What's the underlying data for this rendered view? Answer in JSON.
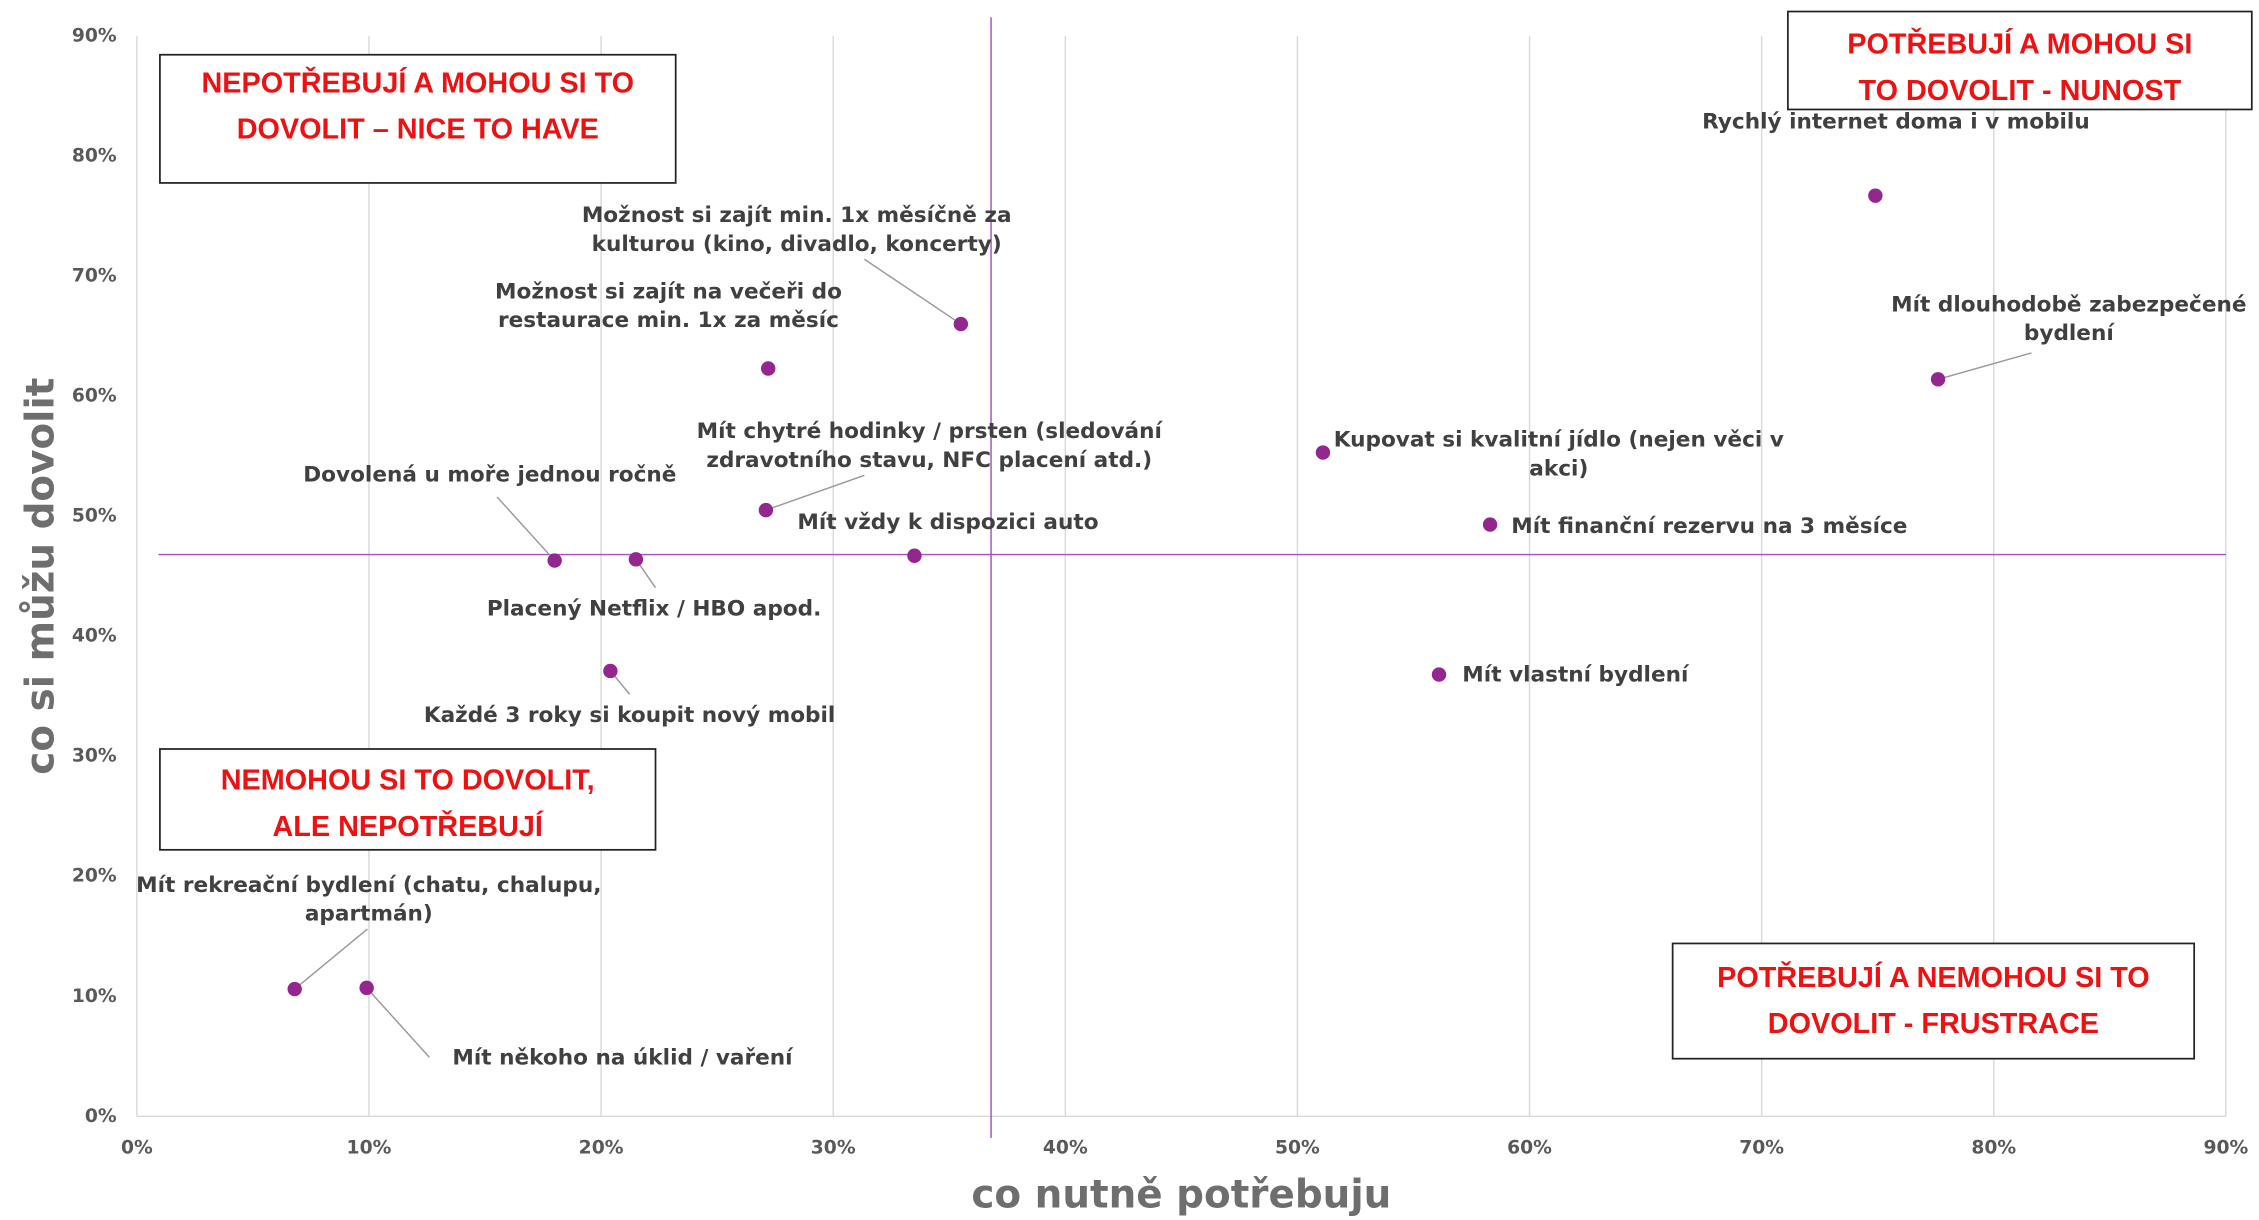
{
  "chart_data": {
    "type": "scatter",
    "x_label": "co nutně potřebuju",
    "y_label": "co si můžu dovolit",
    "xlim": [
      0,
      90
    ],
    "ylim": [
      0,
      90
    ],
    "xticks": [
      {
        "value": 0,
        "label": "0%"
      },
      {
        "value": 10,
        "label": "10%"
      },
      {
        "value": 20,
        "label": "20%"
      },
      {
        "value": 30,
        "label": "30%"
      },
      {
        "value": 40,
        "label": "40%"
      },
      {
        "value": 50,
        "label": "50%"
      },
      {
        "value": 60,
        "label": "60%"
      },
      {
        "value": 70,
        "label": "70%"
      },
      {
        "value": 80,
        "label": "80%"
      },
      {
        "value": 90,
        "label": "90%"
      }
    ],
    "yticks": [
      {
        "value": 0,
        "label": "0%"
      },
      {
        "value": 10,
        "label": "10%"
      },
      {
        "value": 20,
        "label": "20%"
      },
      {
        "value": 30,
        "label": "30%"
      },
      {
        "value": 40,
        "label": "40%"
      },
      {
        "value": 50,
        "label": "50%"
      },
      {
        "value": 60,
        "label": "60%"
      },
      {
        "value": 70,
        "label": "70%"
      },
      {
        "value": 80,
        "label": "80%"
      },
      {
        "value": 90,
        "label": "90%"
      }
    ],
    "grid": "x",
    "color": "#93278f",
    "reference_x": 36.8,
    "reference_y": 46.8,
    "reference_color": "#a64dc4",
    "points": [
      {
        "label": [
          "Rychlý internet doma i v mobilu"
        ],
        "x": 74.9,
        "y": 76.7
      },
      {
        "label": [
          "Mít dlouhodobě zabezpečené",
          "bydlení"
        ],
        "x": 77.6,
        "y": 61.4
      },
      {
        "label": [
          "Možnost si zajít min. 1x měsíčně za",
          "kulturou (kino, divadlo, koncerty)"
        ],
        "x": 35.5,
        "y": 66.0
      },
      {
        "label": [
          "Možnost si zajít na večeři do",
          "restaurace min. 1x za měsíc"
        ],
        "x": 27.2,
        "y": 62.3
      },
      {
        "label": [
          "Mít chytré hodinky / prsten (sledování",
          "zdravotního stavu, NFC placení atd.)"
        ],
        "x": 27.1,
        "y": 50.5
      },
      {
        "label": [
          "Kupovat si kvalitní jídlo (nejen věci v",
          "akci)"
        ],
        "x": 51.1,
        "y": 55.3
      },
      {
        "label": [
          "Mít finanční rezervu na 3 měsíce"
        ],
        "x": 58.3,
        "y": 49.3
      },
      {
        "label": [
          "Dovolená u moře jednou ročně"
        ],
        "x": 18.0,
        "y": 46.3
      },
      {
        "label": [
          "Placený Netflix / HBO apod."
        ],
        "x": 21.5,
        "y": 46.4
      },
      {
        "label": [
          "Mít vždy k dispozici auto"
        ],
        "x": 33.5,
        "y": 46.7
      },
      {
        "label": [
          "Mít vlastní bydlení"
        ],
        "x": 56.1,
        "y": 36.8
      },
      {
        "label": [
          "Každé 3 roky si koupit nový mobil"
        ],
        "x": 20.4,
        "y": 37.1
      },
      {
        "label": [
          "Mít rekreační bydlení (chatu, chalupu,",
          "apartmán)"
        ],
        "x": 6.8,
        "y": 10.6
      },
      {
        "label": [
          "Mít někoho na úklid / vaření"
        ],
        "x": 9.9,
        "y": 10.7
      }
    ],
    "quadrants": [
      [
        "NEPOTŘEBUJÍ A MOHOU SI TO",
        "DOVOLIT – NICE TO HAVE"
      ],
      [
        "POTŘEBUJÍ A MOHOU SI",
        "TO DOVOLIT - NUNOST"
      ],
      [
        "NEMOHOU SI TO DOVOLIT,",
        "ALE NEPOTŘEBUJÍ"
      ],
      [
        "POTŘEBUJÍ A NEMOHOU SI TO",
        "DOVOLIT - FRUSTRACE"
      ]
    ]
  }
}
